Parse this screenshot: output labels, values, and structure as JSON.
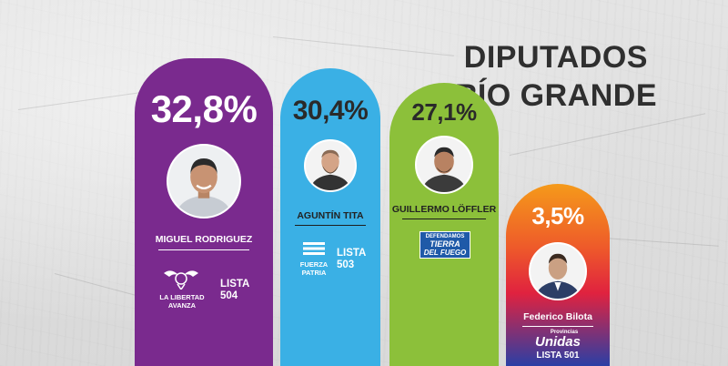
{
  "title": {
    "line1": "DIPUTADOS",
    "line2": "RÍO GRANDE"
  },
  "chart_data": {
    "type": "bar",
    "categories": [
      "MIGUEL RODRIGUEZ",
      "AGUNTÍN TITA",
      "GUILLERMO LÖFFLER",
      "FEDERICO BILOTA"
    ],
    "values": [
      32.8,
      30.4,
      27.1,
      3.5
    ],
    "value_labels": [
      "32,8%",
      "30,4%",
      "27,1%",
      "3,5%"
    ],
    "unit": "%",
    "title": "DIPUTADOS RÍO GRANDE",
    "xlabel": "",
    "ylabel": "",
    "legend": "none",
    "grid": false
  },
  "candidates": [
    {
      "name": "MIGUEL RODRIGUEZ",
      "percent": "32,8%",
      "party": "LA LIBERTAD AVANZA",
      "party_line1": "LA LIBERTAD",
      "party_line2": "AVANZA",
      "lista_label": "LISTA",
      "lista_number": "504",
      "color": "#7a2a8e",
      "logo_icon": "lion-wings-icon"
    },
    {
      "name": "AGUNTÍN TITA",
      "percent": "30,4%",
      "party": "FUERZA PATRIA",
      "party_line1": "FUERZA",
      "party_line2": "PATRIA",
      "lista_label": "LISTA",
      "lista_number": "503",
      "color": "#3ab0e5",
      "logo_icon": "flag-stripes-icon"
    },
    {
      "name": "GUILLERMO LÖFFLER",
      "percent": "27,1%",
      "party": "DEFENDAMOS TIERRA DEL FUEGO",
      "badge_line1": "DEFENDAMOS",
      "badge_line2": "TIERRA",
      "badge_line3": "DEL FUEGO",
      "color": "#8cc03a",
      "logo_icon": "defendamos-badge"
    },
    {
      "name": "Federico Bilota",
      "percent": "3,5%",
      "party": "Provincias Unidas",
      "party_small": "Provincias",
      "party_big": "Unidas",
      "lista_text": "LISTA 501",
      "color_top": "#f59a1a",
      "color_bottom": "#2b3fa5",
      "logo_icon": "provincias-unidas-logo"
    }
  ]
}
